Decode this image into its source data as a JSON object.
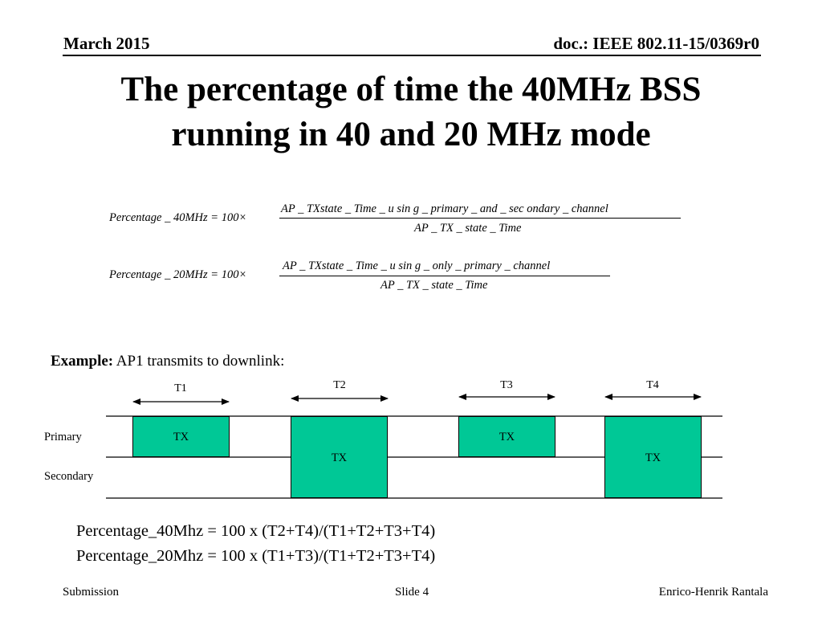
{
  "header": {
    "date": "March 2015",
    "doc_id": "doc.: IEEE 802.11-15/0369r0"
  },
  "title": {
    "line1": "The percentage of time the 40MHz BSS",
    "line2": "running in 40 and 20 MHz mode"
  },
  "equations": [
    {
      "lhs": "Percentage _ 40MHz = 100×",
      "numerator": "AP _ TXstate _ Time _ u sin g _ primary _ and _ sec ondary _ channel",
      "denominator": "AP _ TX _ state _ Time"
    },
    {
      "lhs": "Percentage _ 20MHz = 100×",
      "numerator": "AP _ TXstate _ Time _ u sin g _ only _ primary _ channel",
      "denominator": "AP _ TX _ state _ Time"
    }
  ],
  "example": {
    "label": "Example:",
    "text": " AP1 transmits to downlink:"
  },
  "diagram": {
    "periods": [
      "T1",
      "T2",
      "T3",
      "T4"
    ],
    "lanes": {
      "primary": "Primary",
      "secondary": "Secondary"
    },
    "tx_label": "TX",
    "tx_color": "#00c896"
  },
  "results": {
    "line1": "Percentage_40Mhz = 100 x (T2+T4)/(T1+T2+T3+T4)",
    "line2": "Percentage_20Mhz = 100 x (T1+T3)/(T1+T2+T3+T4)"
  },
  "footer": {
    "left": "Submission",
    "center": "Slide 4",
    "right": "Enrico-Henrik Rantala"
  }
}
